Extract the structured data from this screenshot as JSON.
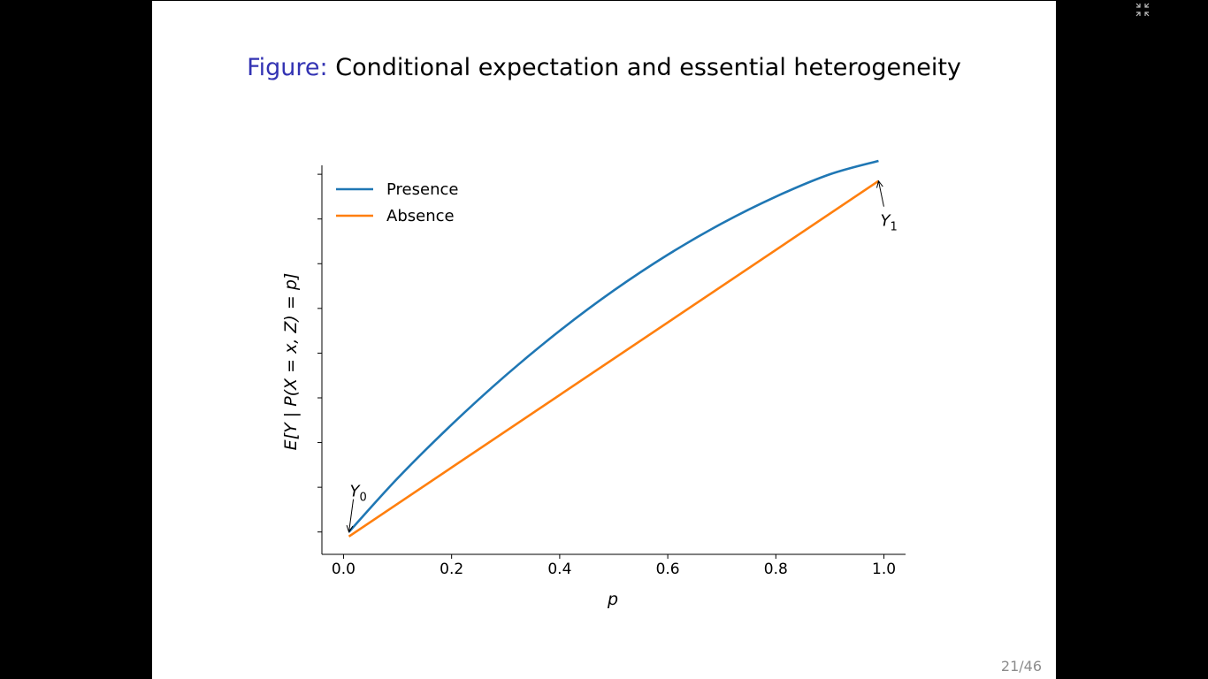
{
  "slide": {
    "title_prefix": "Figure:",
    "title_text": "Conditional expectation and essential heterogeneity",
    "page_current": "21",
    "page_total": "46",
    "page_sep": "/"
  },
  "icons": {
    "fullscreen": "exit-fullscreen-icon"
  },
  "chart_data": {
    "type": "line",
    "xlabel": "p",
    "ylabel": "E[Y | P(X = x, Z) = p]",
    "xlim": [
      -0.04,
      1.04
    ],
    "ylim": [
      -0.05,
      0.82
    ],
    "xticks": [
      "0.0",
      "0.2",
      "0.4",
      "0.6",
      "0.8",
      "1.0"
    ],
    "xtick_values": [
      0.0,
      0.2,
      0.4,
      0.6,
      0.8,
      1.0
    ],
    "ytick_values": [
      0.0,
      0.1,
      0.2,
      0.3,
      0.4,
      0.5,
      0.6,
      0.7,
      0.8
    ],
    "ytick_labels_shown": false,
    "series": [
      {
        "name": "Presence",
        "color": "#1f77b4",
        "x": [
          0.01,
          0.1,
          0.2,
          0.3,
          0.4,
          0.5,
          0.6,
          0.7,
          0.8,
          0.9,
          0.99
        ],
        "y": [
          0.0,
          0.12,
          0.24,
          0.35,
          0.45,
          0.54,
          0.62,
          0.69,
          0.75,
          0.8,
          0.83
        ]
      },
      {
        "name": "Absence",
        "color": "#ff7f0e",
        "x": [
          0.01,
          0.99
        ],
        "y": [
          -0.01,
          0.785
        ]
      }
    ],
    "annotations": [
      {
        "label": "Y",
        "sub": "0",
        "x": 0.01,
        "y": 0.0
      },
      {
        "label": "Y",
        "sub": "1",
        "x": 0.99,
        "y": 0.785
      }
    ],
    "legend_position": "top-left",
    "grid": false
  }
}
